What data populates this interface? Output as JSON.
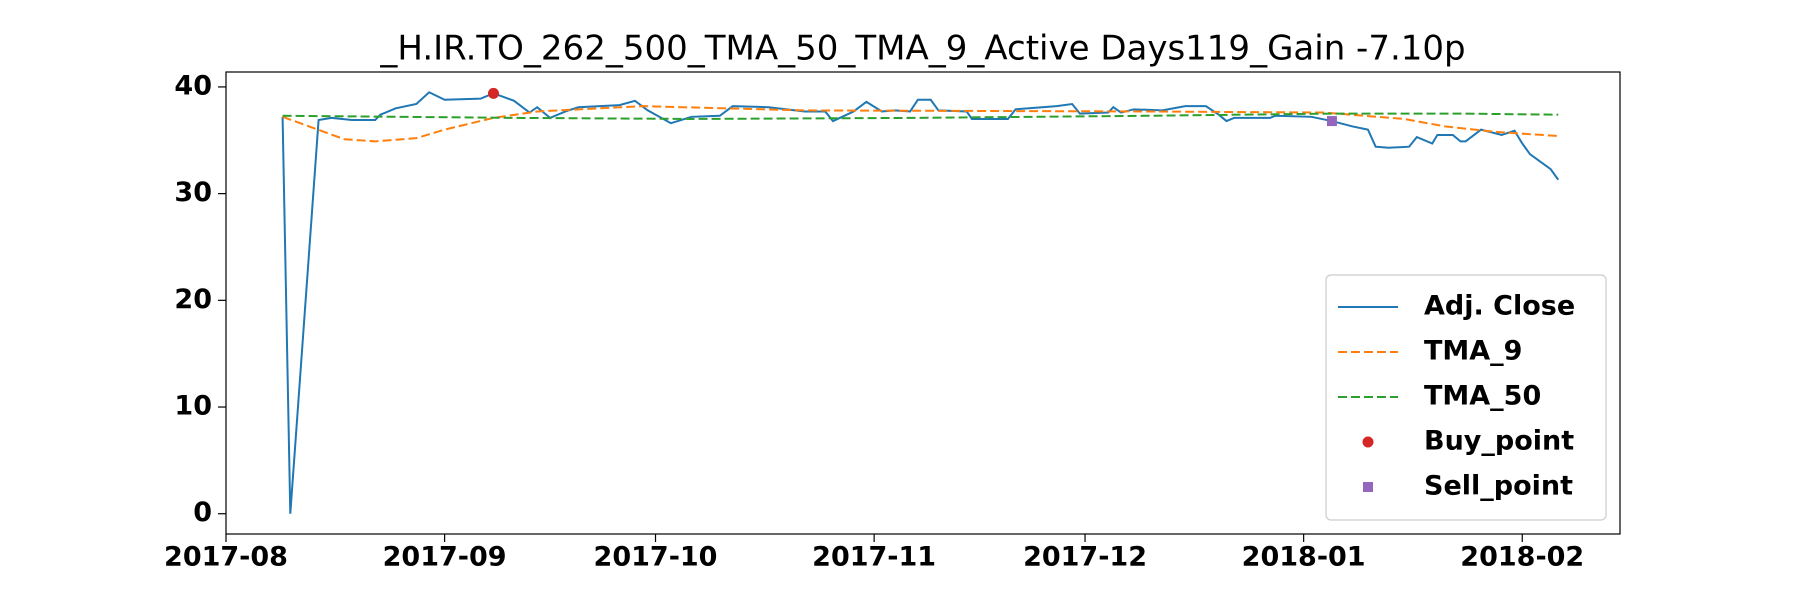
{
  "chart_data": {
    "type": "line",
    "title": "_H.IR.TO_262_500_TMA_50_TMA_9_Active Days119_Gain  -7.10p",
    "xlim": [
      2017.581,
      2018.123
    ],
    "xticks": [
      {
        "value": 2017.581,
        "label": "2017-08"
      },
      {
        "value": 2017.666,
        "label": "2017-09"
      },
      {
        "value": 2017.748,
        "label": "2017-10"
      },
      {
        "value": 2017.833,
        "label": "2017-11"
      },
      {
        "value": 2017.915,
        "label": "2017-12"
      },
      {
        "value": 2018.0,
        "label": "2018-01"
      },
      {
        "value": 2018.085,
        "label": "2018-02"
      }
    ],
    "ylim": [
      -1.9,
      41.4
    ],
    "yticks": [
      0,
      10,
      20,
      30,
      40
    ],
    "grid": false,
    "legend": "lower right",
    "series": [
      {
        "name": "Adj. Close",
        "color": "#1f77b4",
        "linestyle": "solid",
        "x": [
          2017.603,
          2017.606,
          2017.617,
          2017.622,
          2017.63,
          2017.639,
          2017.641,
          2017.647,
          2017.655,
          2017.66,
          2017.666,
          2017.68,
          2017.685,
          2017.693,
          2017.699,
          2017.702,
          2017.707,
          2017.713,
          2017.718,
          2017.734,
          2017.74,
          2017.745,
          2017.754,
          2017.762,
          2017.773,
          2017.778,
          2017.792,
          2017.806,
          2017.814,
          2017.817,
          2017.825,
          2017.83,
          2017.836,
          2017.841,
          2017.847,
          2017.85,
          2017.855,
          2017.858,
          2017.869,
          2017.871,
          2017.882,
          2017.885,
          2017.888,
          2017.904,
          2017.91,
          2017.913,
          2017.924,
          2017.926,
          2017.929,
          2017.934,
          2017.945,
          2017.954,
          2017.962,
          2017.967,
          2017.97,
          2017.973,
          2017.987,
          2017.989,
          2018.003,
          2018.011,
          2018.019,
          2018.025,
          2018.028,
          2018.033,
          2018.041,
          2018.044,
          2018.05,
          2018.052,
          2018.058,
          2018.061,
          2018.063,
          2018.069,
          2018.077,
          2018.082,
          2018.085,
          2018.088,
          2018.096,
          2018.099
        ],
        "values": [
          37.2,
          0,
          36.9,
          37.1,
          36.9,
          36.9,
          37.4,
          38.0,
          38.4,
          39.5,
          38.8,
          38.9,
          39.4,
          38.7,
          37.6,
          38.1,
          37.1,
          37.7,
          38.1,
          38.3,
          38.7,
          37.8,
          36.6,
          37.2,
          37.3,
          38.2,
          38.1,
          37.7,
          37.7,
          36.8,
          37.7,
          38.6,
          37.7,
          37.8,
          37.7,
          38.8,
          38.8,
          37.8,
          37.7,
          37.0,
          37.0,
          37.0,
          37.9,
          38.2,
          38.4,
          37.5,
          37.6,
          38.1,
          37.6,
          37.9,
          37.8,
          38.2,
          38.2,
          37.4,
          36.8,
          37.1,
          37.1,
          37.3,
          37.2,
          36.8,
          36.3,
          36.0,
          34.4,
          34.3,
          34.4,
          35.3,
          34.7,
          35.5,
          35.5,
          34.9,
          34.9,
          36.0,
          35.5,
          35.9,
          34.7,
          33.7,
          32.3,
          31.3
        ]
      },
      {
        "name": "TMA_9",
        "color": "#ff7f0e",
        "linestyle": "dashed",
        "x": [
          2017.603,
          2017.627,
          2017.639,
          2017.655,
          2017.666,
          2017.685,
          2017.702,
          2017.743,
          2017.806,
          2017.94,
          2018.008,
          2018.039,
          2018.055,
          2018.074,
          2018.099
        ],
        "values": [
          37.2,
          35.1,
          34.9,
          35.2,
          36.0,
          37.1,
          37.7,
          38.2,
          37.8,
          37.7,
          37.6,
          37.0,
          36.3,
          35.8,
          35.4
        ]
      },
      {
        "name": "TMA_50",
        "color": "#2ca02c",
        "linestyle": "dashed",
        "x": [
          2017.603,
          2017.693,
          2017.762,
          2017.85,
          2017.94,
          2018.011,
          2018.061,
          2018.099
        ],
        "values": [
          37.3,
          37.1,
          37.0,
          37.1,
          37.3,
          37.5,
          37.5,
          37.4
        ]
      },
      {
        "name": "Buy_point",
        "color": "#d62728",
        "marker": "circle",
        "x": [
          2017.685
        ],
        "values": [
          39.4
        ]
      },
      {
        "name": "Sell_point",
        "color": "#9467bd",
        "marker": "square",
        "x": [
          2018.011
        ],
        "values": [
          36.8
        ]
      }
    ]
  }
}
